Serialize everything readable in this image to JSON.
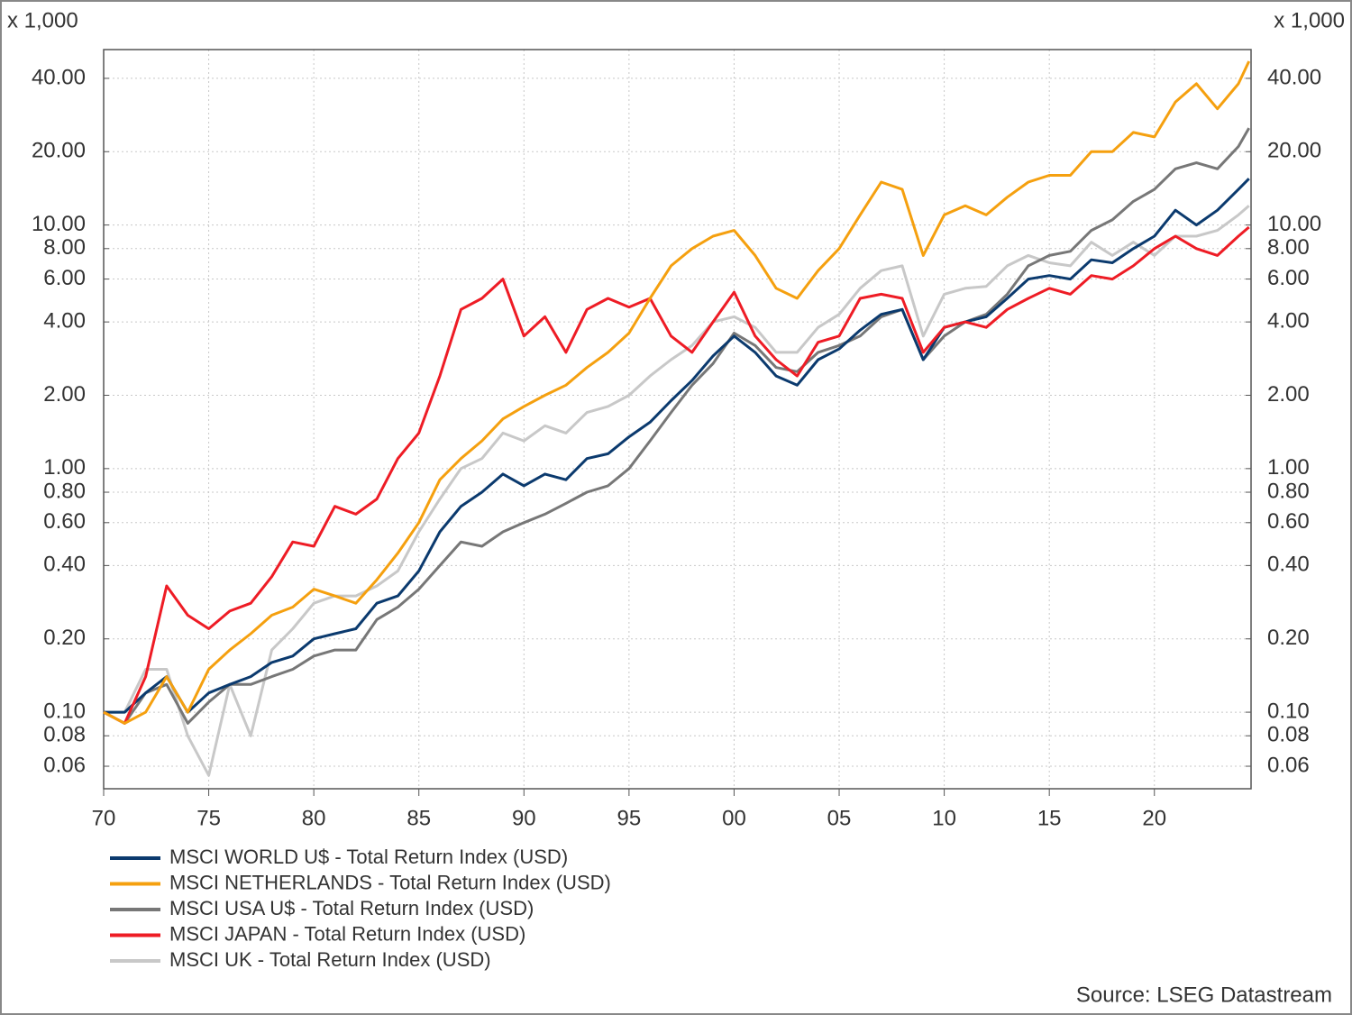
{
  "chart_data": {
    "type": "line",
    "y_unit": "x 1,000",
    "source": "Source: LSEG Datastream",
    "log_scale": true,
    "grid": true,
    "x": [
      1970,
      1971,
      1972,
      1973,
      1974,
      1975,
      1976,
      1977,
      1978,
      1979,
      1980,
      1981,
      1982,
      1983,
      1984,
      1985,
      1986,
      1987,
      1988,
      1989,
      1990,
      1991,
      1992,
      1993,
      1994,
      1995,
      1996,
      1997,
      1998,
      1999,
      2000,
      2001,
      2002,
      2003,
      2004,
      2005,
      2006,
      2007,
      2008,
      2009,
      2010,
      2011,
      2012,
      2013,
      2014,
      2015,
      2016,
      2017,
      2018,
      2019,
      2020,
      2021,
      2022,
      2023,
      2024,
      2024.5
    ],
    "xlim": [
      1970,
      2024.6
    ],
    "xticks": [
      {
        "value": 1970,
        "label": "70"
      },
      {
        "value": 1975,
        "label": "75"
      },
      {
        "value": 1980,
        "label": "80"
      },
      {
        "value": 1985,
        "label": "85"
      },
      {
        "value": 1990,
        "label": "90"
      },
      {
        "value": 1995,
        "label": "95"
      },
      {
        "value": 2000,
        "label": "00"
      },
      {
        "value": 2005,
        "label": "05"
      },
      {
        "value": 2010,
        "label": "10"
      },
      {
        "value": 2015,
        "label": "15"
      },
      {
        "value": 2020,
        "label": "20"
      }
    ],
    "ylim": [
      0.0485,
      52.5
    ],
    "yticks": [
      {
        "value": 0.06,
        "label": "0.06"
      },
      {
        "value": 0.08,
        "label": "0.08"
      },
      {
        "value": 0.1,
        "label": "0.10"
      },
      {
        "value": 0.2,
        "label": "0.20"
      },
      {
        "value": 0.4,
        "label": "0.40"
      },
      {
        "value": 0.6,
        "label": "0.60"
      },
      {
        "value": 0.8,
        "label": "0.80"
      },
      {
        "value": 1,
        "label": "1.00"
      },
      {
        "value": 2,
        "label": "2.00"
      },
      {
        "value": 4,
        "label": "4.00"
      },
      {
        "value": 6,
        "label": "6.00"
      },
      {
        "value": 8,
        "label": "8.00"
      },
      {
        "value": 10,
        "label": "10.00"
      },
      {
        "value": 20,
        "label": "20.00"
      },
      {
        "value": 40,
        "label": "40.00"
      }
    ],
    "series": [
      {
        "name": "MSCI WORLD U$ - Total Return Index (USD)",
        "color": "#0b3a6e",
        "values": [
          0.1,
          0.1,
          0.12,
          0.14,
          0.1,
          0.12,
          0.13,
          0.14,
          0.16,
          0.17,
          0.2,
          0.21,
          0.22,
          0.28,
          0.3,
          0.38,
          0.55,
          0.7,
          0.8,
          0.95,
          0.85,
          0.95,
          0.9,
          1.1,
          1.15,
          1.35,
          1.55,
          1.9,
          2.3,
          2.9,
          3.5,
          3.0,
          2.4,
          2.2,
          2.8,
          3.1,
          3.7,
          4.3,
          4.5,
          2.8,
          3.8,
          4.0,
          4.2,
          5.0,
          6.0,
          6.2,
          6.0,
          7.2,
          7.0,
          8.0,
          9.0,
          11.5,
          10.0,
          11.5,
          14,
          15.5
        ]
      },
      {
        "name": "MSCI NETHERLANDS - Total Return Index (USD)",
        "color": "#f5a00f",
        "values": [
          0.1,
          0.09,
          0.1,
          0.14,
          0.1,
          0.15,
          0.18,
          0.21,
          0.25,
          0.27,
          0.32,
          0.3,
          0.28,
          0.35,
          0.45,
          0.6,
          0.9,
          1.1,
          1.3,
          1.6,
          1.8,
          2.0,
          2.2,
          2.6,
          3.0,
          3.6,
          5.0,
          6.8,
          8.0,
          9.0,
          9.5,
          7.5,
          5.5,
          5.0,
          6.5,
          8.0,
          11,
          15,
          14,
          7.5,
          11,
          12,
          11,
          13,
          15,
          16,
          16,
          20,
          20,
          24,
          23,
          32,
          38,
          30,
          38,
          47
        ]
      },
      {
        "name": "MSCI USA U$ - Total Return Index (USD)",
        "color": "#777777",
        "values": [
          0.1,
          0.09,
          0.12,
          0.13,
          0.09,
          0.11,
          0.13,
          0.13,
          0.14,
          0.15,
          0.17,
          0.18,
          0.18,
          0.24,
          0.27,
          0.32,
          0.4,
          0.5,
          0.48,
          0.55,
          0.6,
          0.65,
          0.72,
          0.8,
          0.85,
          1.0,
          1.3,
          1.7,
          2.2,
          2.7,
          3.6,
          3.2,
          2.6,
          2.5,
          3.0,
          3.2,
          3.5,
          4.2,
          4.5,
          2.8,
          3.5,
          4.0,
          4.3,
          5.2,
          6.8,
          7.5,
          7.8,
          9.5,
          10.5,
          12.5,
          14,
          17,
          18,
          17,
          21,
          25
        ]
      },
      {
        "name": "MSCI JAPAN - Total Return Index (USD)",
        "color": "#ee1c25",
        "values": [
          0.1,
          0.09,
          0.14,
          0.33,
          0.25,
          0.22,
          0.26,
          0.28,
          0.36,
          0.5,
          0.48,
          0.7,
          0.65,
          0.75,
          1.1,
          1.4,
          2.4,
          4.5,
          5.0,
          6.0,
          3.5,
          4.2,
          3.0,
          4.5,
          5.0,
          4.6,
          5.0,
          3.5,
          3.0,
          4.0,
          5.3,
          3.5,
          2.8,
          2.4,
          3.3,
          3.5,
          5.0,
          5.2,
          5.0,
          3.0,
          3.8,
          4.0,
          3.8,
          4.5,
          5.0,
          5.5,
          5.2,
          6.2,
          6.0,
          6.8,
          8.0,
          9.0,
          8.0,
          7.5,
          9.0,
          9.8
        ]
      },
      {
        "name": "MSCI UK - Total Return Index (USD)",
        "color": "#c8c8c8",
        "values": [
          0.1,
          0.1,
          0.15,
          0.15,
          0.08,
          0.055,
          0.13,
          0.08,
          0.18,
          0.22,
          0.28,
          0.3,
          0.3,
          0.33,
          0.38,
          0.55,
          0.75,
          1.0,
          1.1,
          1.4,
          1.3,
          1.5,
          1.4,
          1.7,
          1.8,
          2.0,
          2.4,
          2.8,
          3.2,
          4.0,
          4.2,
          3.8,
          3.0,
          3.0,
          3.8,
          4.3,
          5.5,
          6.5,
          6.8,
          3.5,
          5.2,
          5.5,
          5.6,
          6.8,
          7.5,
          7.0,
          6.8,
          8.5,
          7.5,
          8.5,
          7.5,
          9.0,
          9.0,
          9.5,
          11,
          12
        ]
      }
    ]
  }
}
